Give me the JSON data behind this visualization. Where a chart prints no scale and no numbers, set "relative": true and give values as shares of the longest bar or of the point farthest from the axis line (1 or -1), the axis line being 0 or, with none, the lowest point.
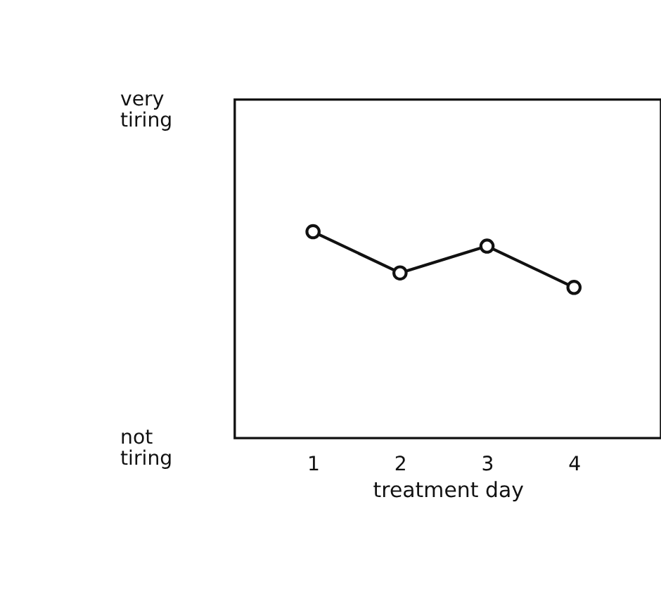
{
  "chart_data": {
    "type": "line",
    "xlabel": "treatment day",
    "relative": true,
    "x": [
      1,
      2,
      3,
      4
    ],
    "series": [
      {
        "color": "#111111",
        "values": [
          1,
          0.8,
          0.93,
          0.73
        ]
      }
    ],
    "xlim": [
      0.1,
      5
    ],
    "xticks": [
      1,
      2,
      3,
      4
    ],
    "annotations": [
      "very tiring",
      "not tiring"
    ],
    "grid": false,
    "legend": false,
    "marker": "circle",
    "line_style": "solid"
  }
}
